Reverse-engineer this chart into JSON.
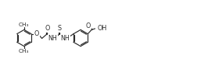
{
  "bg_color": "#ffffff",
  "line_color": "#2a2a2a",
  "line_width": 0.85,
  "font_size": 5.8,
  "fig_width": 2.53,
  "fig_height": 0.98,
  "dpi": 100,
  "xlim": [
    0,
    26
  ],
  "ylim": [
    0,
    10
  ]
}
